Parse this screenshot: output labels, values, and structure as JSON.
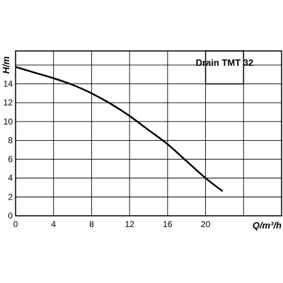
{
  "chart_data": {
    "type": "line",
    "xlabel": "Q/m³/h",
    "ylabel": "H/m",
    "xlim": [
      0,
      28
    ],
    "ylim": [
      0,
      17.5
    ],
    "xticks": [
      0,
      4,
      8,
      12,
      16,
      20
    ],
    "yticks": [
      0,
      2,
      4,
      6,
      8,
      10,
      12,
      14
    ],
    "grid": true,
    "legend_placement": "top-right",
    "series": [
      {
        "name": "Drain TMT 32",
        "x": [
          0,
          2,
          4,
          6,
          8,
          10,
          12,
          14,
          16,
          18,
          20,
          21.8
        ],
        "y": [
          15.8,
          15.2,
          14.6,
          13.9,
          13.0,
          11.9,
          10.6,
          9.1,
          7.6,
          5.8,
          4.0,
          2.6
        ]
      }
    ]
  }
}
